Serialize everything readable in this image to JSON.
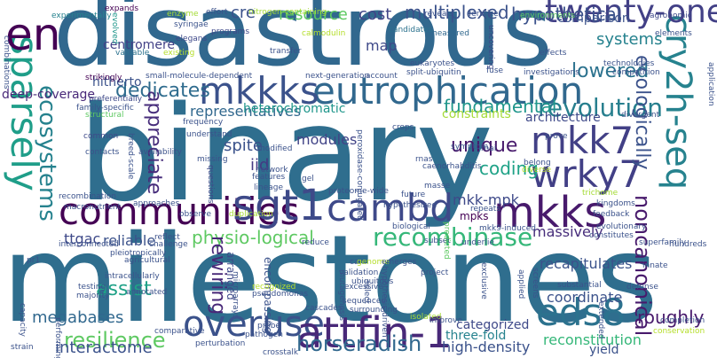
{
  "words": [
    {
      "text": "milestones",
      "color": "#2f6e8e"
    },
    {
      "text": "binary",
      "color": "#2f6e8e"
    },
    {
      "text": "disastrous",
      "color": "#31688e"
    },
    {
      "text": "overuse",
      "color": "#3b528b"
    },
    {
      "text": "attfin-1",
      "color": "#482878"
    },
    {
      "text": "eutrophication",
      "color": "#31688e"
    },
    {
      "text": "mkkks",
      "color": "#3b528b"
    },
    {
      "text": "communities",
      "color": "#440154"
    },
    {
      "text": "sgt1",
      "color": "#3e4a89"
    },
    {
      "text": "cambd",
      "color": "#3e4989"
    },
    {
      "text": "mkks",
      "color": "#481a6c"
    },
    {
      "text": "mkk7",
      "color": "#424086"
    },
    {
      "text": "wrky7",
      "color": "#424086"
    },
    {
      "text": "recombinase",
      "color": "#35b779"
    },
    {
      "text": "eds8",
      "color": "#2c728e"
    },
    {
      "text": "cry2h-seq",
      "color": "#26828e"
    },
    {
      "text": "twenty-one",
      "color": "#424086"
    },
    {
      "text": "sparsely",
      "color": "#1f9e89"
    },
    {
      "text": "en",
      "color": "#440154"
    },
    {
      "text": "revolution",
      "color": "#277f8e"
    },
    {
      "text": "ecosystems",
      "color": "#26828e"
    },
    {
      "text": "resilience",
      "color": "#5ec962"
    },
    {
      "text": "horseradish",
      "color": "#31688e"
    },
    {
      "text": "physio-logical",
      "color": "#5ec962"
    },
    {
      "text": "rewiring",
      "color": "#482878"
    },
    {
      "text": "ecologically",
      "color": "#3b528b"
    },
    {
      "text": "noncanonical",
      "color": "#481a6c"
    },
    {
      "text": "dedicates",
      "color": "#2f6c8e"
    },
    {
      "text": "appreciate",
      "color": "#472d7b"
    },
    {
      "text": "hypothetical",
      "color": "#3b528b"
    },
    {
      "text": "fundamental",
      "color": "#1f968b"
    },
    {
      "text": "coding",
      "color": "#1fa287"
    },
    {
      "text": "multiplexed",
      "color": "#3b528b"
    },
    {
      "text": "unique",
      "color": "#481a6c"
    },
    {
      "text": "lowered",
      "color": "#2c728e"
    },
    {
      "text": "systems",
      "color": "#26828e"
    },
    {
      "text": "resource",
      "color": "#5ec962"
    },
    {
      "text": "cost",
      "color": "#414487"
    },
    {
      "text": "cre",
      "color": "#3b528b"
    },
    {
      "text": "assist",
      "color": "#1fa187"
    },
    {
      "text": "megabases",
      "color": "#31688e"
    },
    {
      "text": "interactome",
      "color": "#3b528b"
    },
    {
      "text": "roughly",
      "color": "#481a6c"
    },
    {
      "text": "iid",
      "color": "#443983"
    },
    {
      "text": "spite",
      "color": "#3b528b"
    },
    {
      "text": "modules",
      "color": "#414487"
    },
    {
      "text": "mkk-mpk",
      "color": "#3e4989"
    },
    {
      "text": "massively",
      "color": "#472d7b"
    },
    {
      "text": "recapitulates",
      "color": "#3b528b"
    },
    {
      "text": "reliable",
      "color": "#3b528b"
    },
    {
      "text": "ttgac",
      "color": "#3e4989"
    },
    {
      "text": "representatives",
      "color": "#31688e"
    },
    {
      "text": "heterochromatic",
      "color": "#1f968b"
    },
    {
      "text": "constraints",
      "color": "#a5db36"
    },
    {
      "text": "hitherto",
      "color": "#3b528b"
    },
    {
      "text": "comparison",
      "color": "#3b528b"
    },
    {
      "text": "architecture",
      "color": "#3e4989"
    },
    {
      "text": "deep-coverage",
      "color": "#482878"
    },
    {
      "text": "coordinate",
      "color": "#3b528b"
    },
    {
      "text": "categorized",
      "color": "#3e4989"
    },
    {
      "text": "high-density",
      "color": "#3b528b"
    },
    {
      "text": "three-fold",
      "color": "#26828e"
    },
    {
      "text": "reconstitution",
      "color": "#35b779"
    },
    {
      "text": "yield",
      "color": "#3b528b"
    },
    {
      "text": "map",
      "color": "#3e4989"
    },
    {
      "text": "centromere",
      "color": "#424086"
    },
    {
      "text": "mpks",
      "color": "#440154"
    },
    {
      "text": "encompassing",
      "color": "#3b528b"
    },
    {
      "text": "arranged",
      "color": "#3e4989"
    },
    {
      "text": "effort",
      "color": "#3b528b"
    },
    {
      "text": "enzyme",
      "color": "#a5db36"
    },
    {
      "text": "expands",
      "color": "#440154"
    },
    {
      "text": "experimentally",
      "color": "#26828e"
    },
    {
      "text": "elegans",
      "color": "#3e4989"
    },
    {
      "text": "syringae",
      "color": "#3b528b"
    },
    {
      "text": "evolved",
      "color": "#1f968b"
    },
    {
      "text": "valuable",
      "color": "#2c728e"
    },
    {
      "text": "existing",
      "color": "#b5de2b"
    },
    {
      "text": "small-molecule-dependent",
      "color": "#3b528b"
    },
    {
      "text": "programs",
      "color": "#3e4989"
    },
    {
      "text": "nitrogen-containing",
      "color": "#a5db36"
    },
    {
      "text": "calmodulin",
      "color": "#b5de2b"
    },
    {
      "text": "transfer",
      "color": "#3b528b"
    },
    {
      "text": "next-generation",
      "color": "#3b528b"
    },
    {
      "text": "measured",
      "color": "#31688e"
    },
    {
      "text": "candidates",
      "color": "#2c728e"
    },
    {
      "text": "uncovering",
      "color": "#3e4989"
    },
    {
      "text": "reveals",
      "color": "#3b528b"
    },
    {
      "text": "fertilizer",
      "color": "#3b528b"
    },
    {
      "text": "environments",
      "color": "#5ec962"
    },
    {
      "text": "eukaryotes",
      "color": "#3b528b"
    },
    {
      "text": "split-ubiquitin",
      "color": "#3b528b"
    },
    {
      "text": "fuse",
      "color": "#3b528b"
    },
    {
      "text": "account",
      "color": "#3b528b"
    },
    {
      "text": "investigations",
      "color": "#3b528b"
    },
    {
      "text": "effects",
      "color": "#3b528b"
    },
    {
      "text": "technologies",
      "color": "#3b528b"
    },
    {
      "text": "competition",
      "color": "#3b528b"
    },
    {
      "text": "agronomic",
      "color": "#3e4989"
    },
    {
      "text": "elements",
      "color": "#3b528b"
    },
    {
      "text": "application",
      "color": "#3b528b"
    },
    {
      "text": "strikingly",
      "color": "#440154"
    },
    {
      "text": "preferentially",
      "color": "#3e4989"
    },
    {
      "text": "family-specific",
      "color": "#3b528b"
    },
    {
      "text": "structural",
      "color": "#5ec962"
    },
    {
      "text": "frequency",
      "color": "#3b528b"
    },
    {
      "text": "understand",
      "color": "#3b528b"
    },
    {
      "text": "common",
      "color": "#3e4989"
    },
    {
      "text": "contacts",
      "color": "#3b528b"
    },
    {
      "text": "breed-scale",
      "color": "#3b528b"
    },
    {
      "text": "availability",
      "color": "#3b528b"
    },
    {
      "text": "missing",
      "color": "#3b528b"
    },
    {
      "text": "modified",
      "color": "#3b528b"
    },
    {
      "text": "network",
      "color": "#3b528b"
    },
    {
      "text": "features",
      "color": "#3b528b"
    },
    {
      "text": "lineage",
      "color": "#3b528b"
    },
    {
      "text": "duplication",
      "color": "#a5db36"
    },
    {
      "text": "questions",
      "color": "#3e4989"
    },
    {
      "text": "gel",
      "color": "#3b528b"
    },
    {
      "text": "crops",
      "color": "#3b528b"
    },
    {
      "text": "symptom",
      "color": "#3b528b"
    },
    {
      "text": "rnai",
      "color": "#3b528b"
    },
    {
      "text": "rnas",
      "color": "#3b528b"
    },
    {
      "text": "caenorhabditis",
      "color": "#3b528b"
    },
    {
      "text": "belong",
      "color": "#3b528b"
    },
    {
      "text": "diverse",
      "color": "#b5de2b"
    },
    {
      "text": "prove",
      "color": "#3b528b"
    },
    {
      "text": "divergent",
      "color": "#3b528b"
    },
    {
      "text": "peroxidase-conjugated",
      "color": "#3b528b"
    },
    {
      "text": "proteome-wide",
      "color": "#3b528b"
    },
    {
      "text": "future",
      "color": "#3b528b"
    },
    {
      "text": "masse",
      "color": "#3b528b"
    },
    {
      "text": "repeats",
      "color": "#3b528b"
    },
    {
      "text": "hypothesized",
      "color": "#3b528b"
    },
    {
      "text": "biological",
      "color": "#3b528b"
    },
    {
      "text": "mkk9-induced",
      "color": "#3b528b"
    },
    {
      "text": "subset",
      "color": "#3b528b"
    },
    {
      "text": "underlie",
      "color": "#3b528b"
    },
    {
      "text": "superfamily",
      "color": "#3b528b"
    },
    {
      "text": "hundreds",
      "color": "#3b528b"
    },
    {
      "text": "feedback",
      "color": "#3b528b"
    },
    {
      "text": "evolutionary",
      "color": "#3b528b"
    },
    {
      "text": "constitutes",
      "color": "#3b528b"
    },
    {
      "text": "kingdoms",
      "color": "#3b528b"
    },
    {
      "text": "trichome",
      "color": "#a5db36"
    },
    {
      "text": "predicted",
      "color": "#5ec962"
    },
    {
      "text": "recombination",
      "color": "#3b528b"
    },
    {
      "text": "macronutrient",
      "color": "#3b528b"
    },
    {
      "text": "approaches",
      "color": "#3b528b"
    },
    {
      "text": "observe",
      "color": "#3b528b"
    },
    {
      "text": "reflect",
      "color": "#3b528b"
    },
    {
      "text": "challenge",
      "color": "#3b528b"
    },
    {
      "text": "interconnected",
      "color": "#3b528b"
    },
    {
      "text": "agricultural",
      "color": "#3b528b"
    },
    {
      "text": "pleiotropically",
      "color": "#3b528b"
    },
    {
      "text": "intracellularly",
      "color": "#3b528b"
    },
    {
      "text": "pr1",
      "color": "#3b528b"
    },
    {
      "text": "testing",
      "color": "#3b528b"
    },
    {
      "text": "majority",
      "color": "#3b528b"
    },
    {
      "text": "microarrays",
      "color": "#3b528b"
    },
    {
      "text": "annotated",
      "color": "#3b528b"
    },
    {
      "text": "recognized",
      "color": "#b5de2b"
    },
    {
      "text": "pseudomonas",
      "color": "#3b528b"
    },
    {
      "text": "reduce",
      "color": "#3b528b"
    },
    {
      "text": "validation",
      "color": "#3b528b"
    },
    {
      "text": "cam",
      "color": "#3b528b"
    },
    {
      "text": "genome",
      "color": "#b5de2b"
    },
    {
      "text": "ubiquitous",
      "color": "#3b528b"
    },
    {
      "text": "excessive",
      "color": "#3b528b"
    },
    {
      "text": "emerges",
      "color": "#3b528b"
    },
    {
      "text": "project",
      "color": "#3b528b"
    },
    {
      "text": "hypothesis-driven",
      "color": "#3b528b"
    },
    {
      "text": "cascades",
      "color": "#3b528b"
    },
    {
      "text": "sequenced",
      "color": "#3b528b"
    },
    {
      "text": "surrounding",
      "color": "#3b528b"
    },
    {
      "text": "isolated",
      "color": "#a5db36"
    },
    {
      "text": "improve",
      "color": "#3b528b"
    },
    {
      "text": "exclusive",
      "color": "#3b528b"
    },
    {
      "text": "applied",
      "color": "#3b528b"
    },
    {
      "text": "screens",
      "color": "#3b528b"
    },
    {
      "text": "substantial",
      "color": "#3b528b"
    },
    {
      "text": "defense",
      "color": "#3b528b"
    },
    {
      "text": "innate",
      "color": "#3b528b"
    },
    {
      "text": "extended",
      "color": "#3b528b"
    },
    {
      "text": "completion",
      "color": "#3b528b"
    },
    {
      "text": "conservation",
      "color": "#b5de2b"
    },
    {
      "text": "comparative",
      "color": "#3b528b"
    },
    {
      "text": "probe",
      "color": "#3b528b"
    },
    {
      "text": "pathogen",
      "color": "#3b528b"
    },
    {
      "text": "perturbation",
      "color": "#3b528b"
    },
    {
      "text": "crosstalk",
      "color": "#3b528b"
    },
    {
      "text": "mutagenesis",
      "color": "#3b528b"
    },
    {
      "text": "select",
      "color": "#3b528b"
    },
    {
      "text": "strain",
      "color": "#3b528b"
    },
    {
      "text": "capacity",
      "color": "#3b528b"
    },
    {
      "text": "performing",
      "color": "#3b528b"
    },
    {
      "text": "combinations",
      "color": "#3b528b"
    }
  ]
}
